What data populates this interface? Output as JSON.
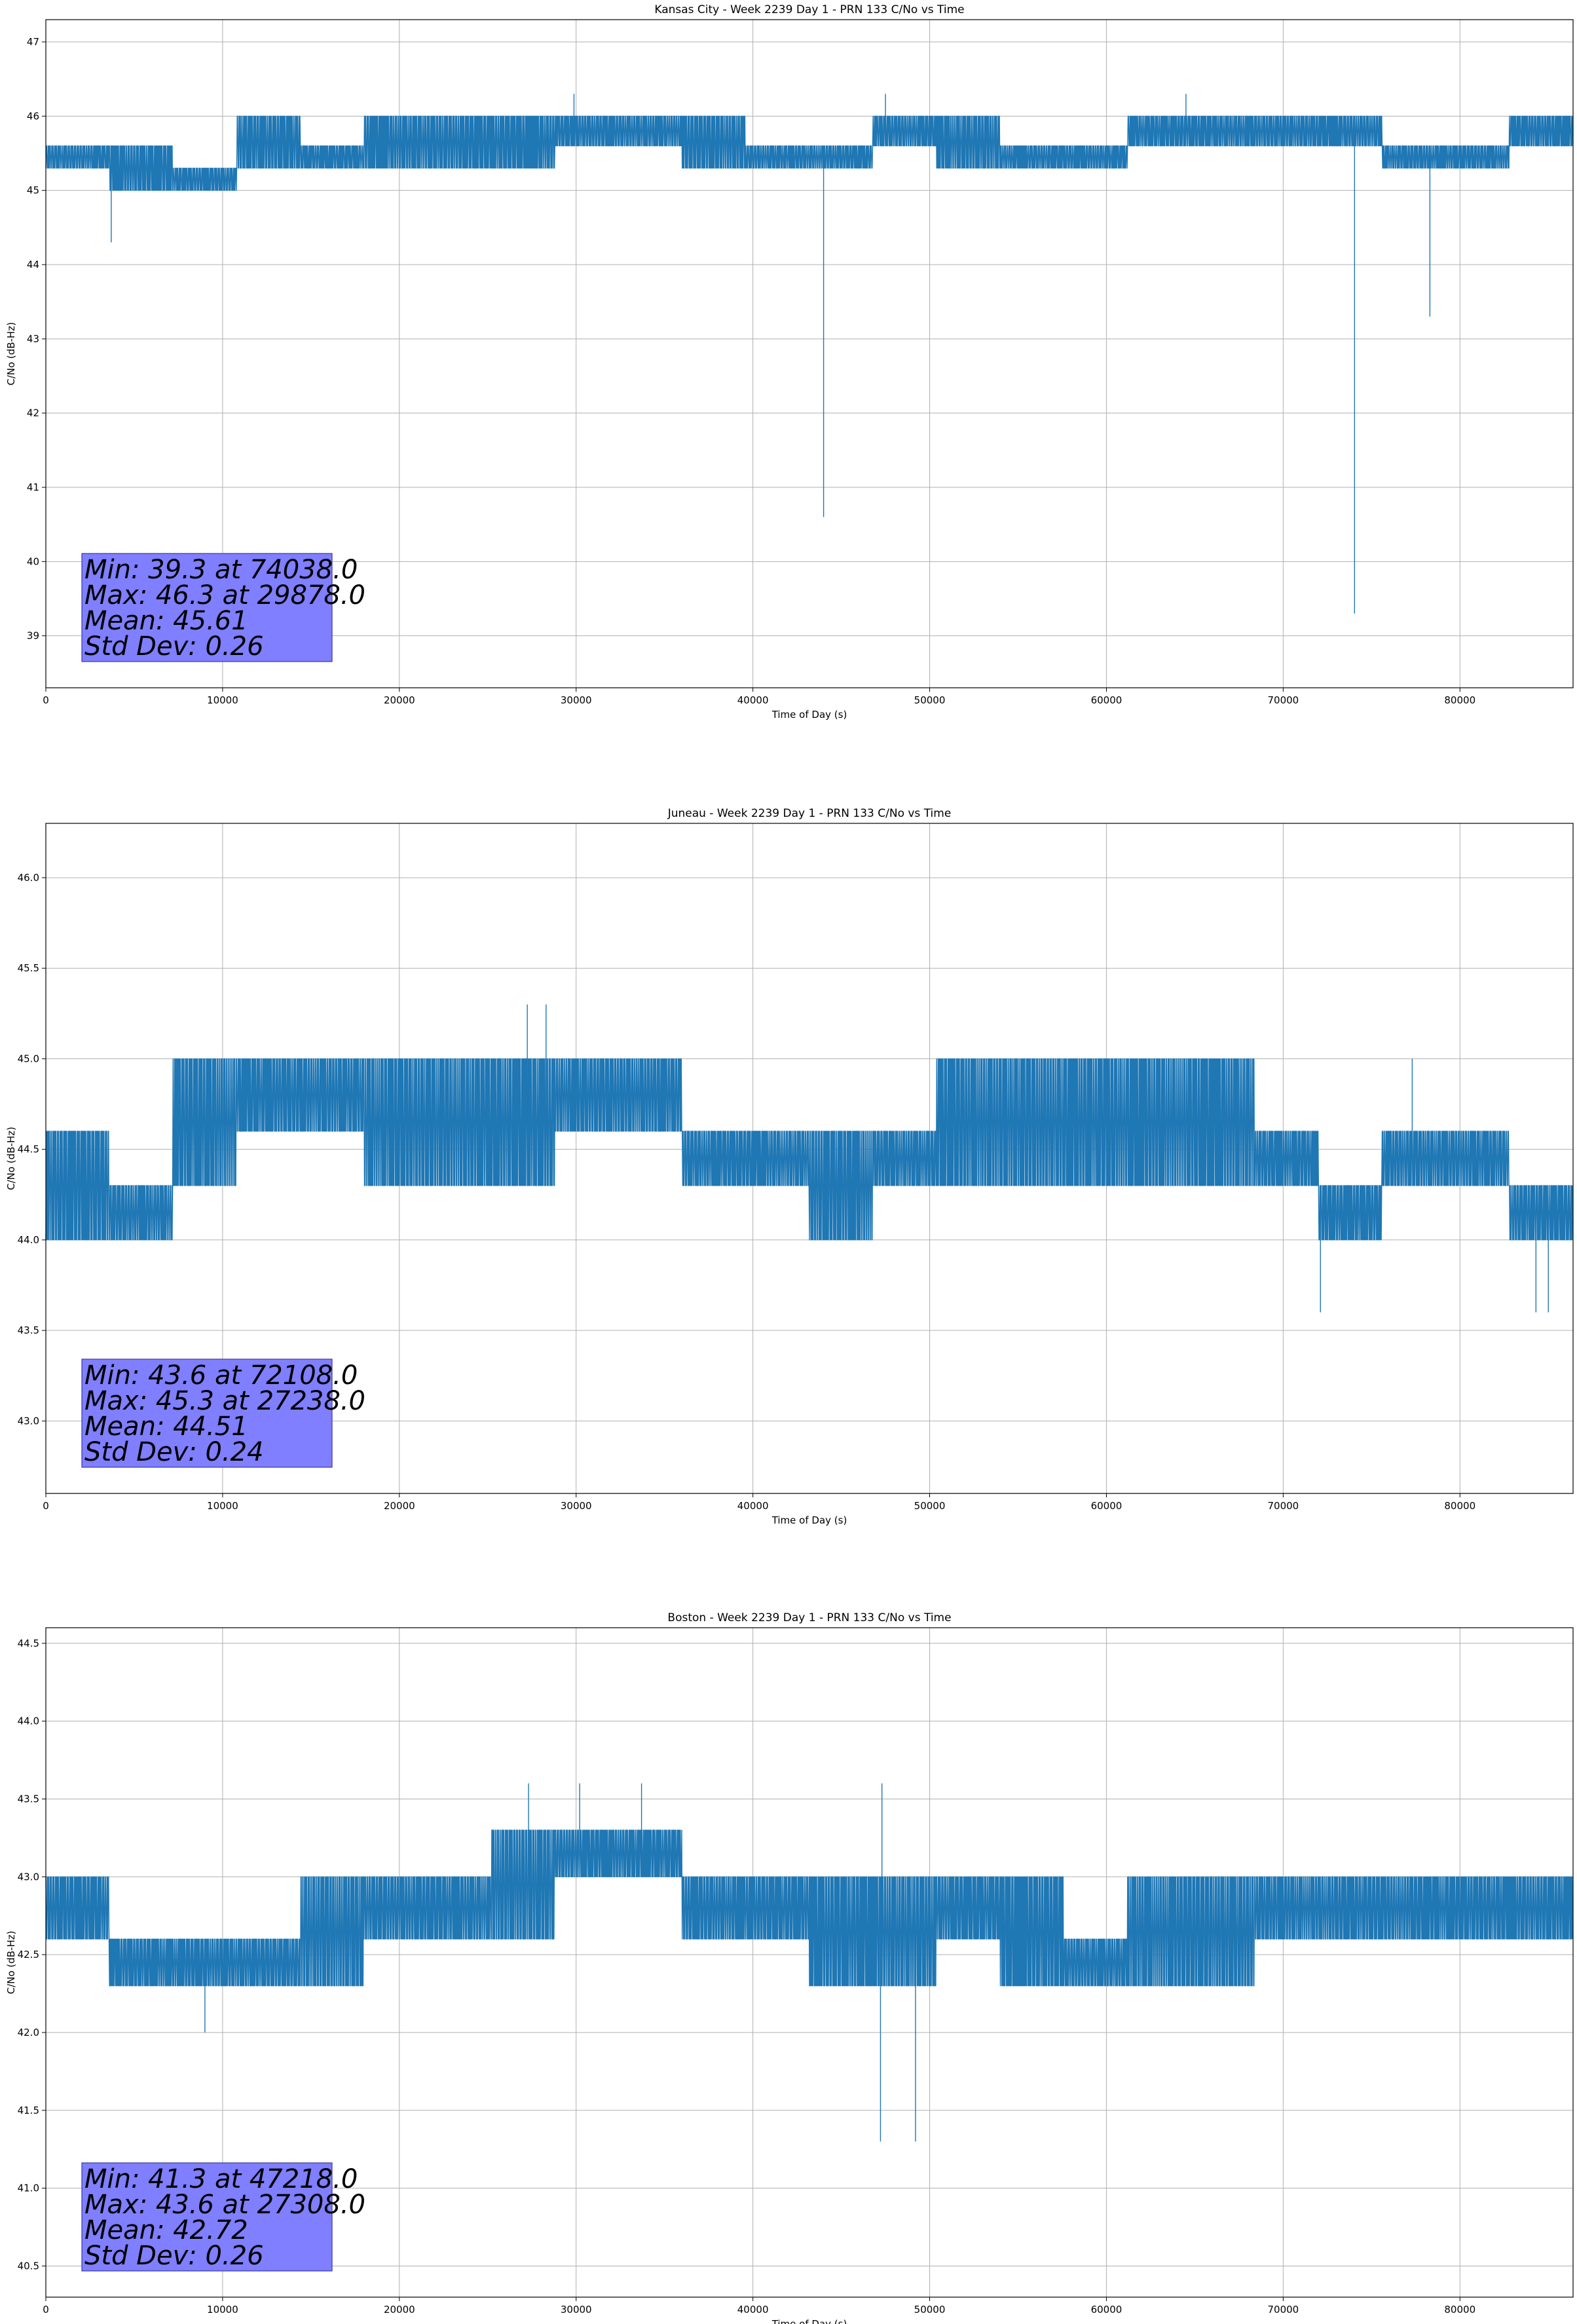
{
  "figure": {
    "background": "#ffffff",
    "series_color": "#1f77b4",
    "stats_box_color": "#7f7fff"
  },
  "chart_data": [
    {
      "type": "line",
      "title": "Kansas City - Week 2239 Day 1 - PRN 133 C/No vs Time",
      "xlabel": "Time of Day (s)",
      "ylabel": "C/No (dB-Hz)",
      "xlim": [
        0,
        86400
      ],
      "ylim": [
        38.3,
        47.3
      ],
      "xticks": [
        0,
        10000,
        20000,
        30000,
        40000,
        50000,
        60000,
        70000,
        80000
      ],
      "yticks": [
        39,
        40,
        41,
        42,
        43,
        44,
        45,
        46,
        47
      ],
      "grid": true,
      "stats": [
        "Min: 39.3 at 74038.0",
        "Max: 46.3 at 29878.0",
        "Mean: 45.61",
        "Std Dev: 0.26"
      ],
      "series": [
        {
          "values": [
            [
              0,
              45.3,
              45.6
            ],
            [
              3600,
              45.0,
              45.6
            ],
            [
              7200,
              45.0,
              45.3
            ],
            [
              10800,
              45.3,
              46.0
            ],
            [
              14400,
              45.3,
              45.6
            ],
            [
              18000,
              45.3,
              46.0
            ],
            [
              21600,
              45.3,
              46.0
            ],
            [
              25200,
              45.3,
              46.0
            ],
            [
              28800,
              45.6,
              46.0
            ],
            [
              32400,
              45.6,
              46.0
            ],
            [
              36000,
              45.3,
              46.0
            ],
            [
              39600,
              45.3,
              45.6
            ],
            [
              43200,
              45.3,
              45.6
            ],
            [
              46800,
              45.6,
              46.0
            ],
            [
              50400,
              45.3,
              46.0
            ],
            [
              54000,
              45.3,
              45.6
            ],
            [
              57600,
              45.3,
              45.6
            ],
            [
              61200,
              45.6,
              46.0
            ],
            [
              64800,
              45.6,
              46.0
            ],
            [
              68400,
              45.6,
              46.0
            ],
            [
              72000,
              45.6,
              46.0
            ],
            [
              75600,
              45.3,
              45.6
            ],
            [
              79200,
              45.3,
              45.6
            ],
            [
              82800,
              45.6,
              46.0
            ]
          ],
          "spikes": [
            [
              3700,
              44.3
            ],
            [
              44000,
              40.6
            ],
            [
              74038,
              39.3
            ],
            [
              78300,
              43.3
            ],
            [
              29878,
              46.3
            ],
            [
              47500,
              46.3
            ],
            [
              64500,
              46.3
            ]
          ]
        }
      ]
    },
    {
      "type": "line",
      "title": "Juneau - Week 2239 Day 1 - PRN 133 C/No vs Time",
      "xlabel": "Time of Day (s)",
      "ylabel": "C/No (dB-Hz)",
      "xlim": [
        0,
        86400
      ],
      "ylim": [
        42.6,
        46.3
      ],
      "xticks": [
        0,
        10000,
        20000,
        30000,
        40000,
        50000,
        60000,
        70000,
        80000
      ],
      "yticks": [
        43.0,
        43.5,
        44.0,
        44.5,
        45.0,
        45.5,
        46.0
      ],
      "grid": true,
      "stats": [
        "Min: 43.6 at 72108.0",
        "Max: 45.3 at 27238.0",
        "Mean: 44.51",
        "Std Dev: 0.24"
      ],
      "series": [
        {
          "values": [
            [
              0,
              44.0,
              44.6
            ],
            [
              3600,
              44.0,
              44.3
            ],
            [
              7200,
              44.3,
              45.0
            ],
            [
              10800,
              44.6,
              45.0
            ],
            [
              14400,
              44.6,
              45.0
            ],
            [
              18000,
              44.3,
              45.0
            ],
            [
              21600,
              44.3,
              45.0
            ],
            [
              25200,
              44.3,
              45.0
            ],
            [
              28800,
              44.6,
              45.0
            ],
            [
              32400,
              44.6,
              45.0
            ],
            [
              36000,
              44.3,
              44.6
            ],
            [
              39600,
              44.3,
              44.6
            ],
            [
              43200,
              44.0,
              44.6
            ],
            [
              46800,
              44.3,
              44.6
            ],
            [
              50400,
              44.3,
              45.0
            ],
            [
              54000,
              44.3,
              45.0
            ],
            [
              57600,
              44.3,
              45.0
            ],
            [
              61200,
              44.3,
              45.0
            ],
            [
              64800,
              44.3,
              45.0
            ],
            [
              68400,
              44.3,
              44.6
            ],
            [
              72000,
              44.0,
              44.3
            ],
            [
              75600,
              44.3,
              44.6
            ],
            [
              79200,
              44.3,
              44.6
            ],
            [
              82800,
              44.0,
              44.3
            ]
          ],
          "spikes": [
            [
              27238,
              45.3
            ],
            [
              28300,
              45.3
            ],
            [
              72108,
              43.6
            ],
            [
              85000,
              43.6
            ],
            [
              84300,
              43.6
            ],
            [
              77300,
              45.0
            ]
          ]
        }
      ]
    },
    {
      "type": "line",
      "title": "Boston - Week 2239 Day 1 - PRN 133 C/No vs Time",
      "xlabel": "Time of Day (s)",
      "ylabel": "C/No (dB-Hz)",
      "xlim": [
        0,
        86400
      ],
      "ylim": [
        40.3,
        44.6
      ],
      "xticks": [
        0,
        10000,
        20000,
        30000,
        40000,
        50000,
        60000,
        70000,
        80000
      ],
      "yticks": [
        40.5,
        41.0,
        41.5,
        42.0,
        42.5,
        43.0,
        43.5,
        44.0,
        44.5
      ],
      "grid": true,
      "stats": [
        "Min: 41.3 at 47218.0",
        "Max: 43.6 at 27308.0",
        "Mean: 42.72",
        "Std Dev: 0.26"
      ],
      "series": [
        {
          "values": [
            [
              0,
              42.6,
              43.0
            ],
            [
              3600,
              42.3,
              42.6
            ],
            [
              7200,
              42.3,
              42.6
            ],
            [
              10800,
              42.3,
              42.6
            ],
            [
              14400,
              42.3,
              43.0
            ],
            [
              18000,
              42.6,
              43.0
            ],
            [
              21600,
              42.6,
              43.0
            ],
            [
              25200,
              42.6,
              43.3
            ],
            [
              28800,
              43.0,
              43.3
            ],
            [
              32400,
              43.0,
              43.3
            ],
            [
              36000,
              42.6,
              43.0
            ],
            [
              39600,
              42.6,
              43.0
            ],
            [
              43200,
              42.3,
              43.0
            ],
            [
              46800,
              42.3,
              43.0
            ],
            [
              50400,
              42.6,
              43.0
            ],
            [
              54000,
              42.3,
              43.0
            ],
            [
              57600,
              42.3,
              42.6
            ],
            [
              61200,
              42.3,
              43.0
            ],
            [
              64800,
              42.3,
              43.0
            ],
            [
              68400,
              42.6,
              43.0
            ],
            [
              72000,
              42.6,
              43.0
            ],
            [
              75600,
              42.6,
              43.0
            ],
            [
              79200,
              42.6,
              43.0
            ],
            [
              82800,
              42.6,
              43.0
            ]
          ],
          "spikes": [
            [
              47218,
              41.3
            ],
            [
              49200,
              41.3
            ],
            [
              9000,
              42.0
            ],
            [
              27308,
              43.6
            ],
            [
              30200,
              43.6
            ],
            [
              33700,
              43.6
            ],
            [
              47300,
              43.6
            ]
          ]
        }
      ]
    }
  ]
}
